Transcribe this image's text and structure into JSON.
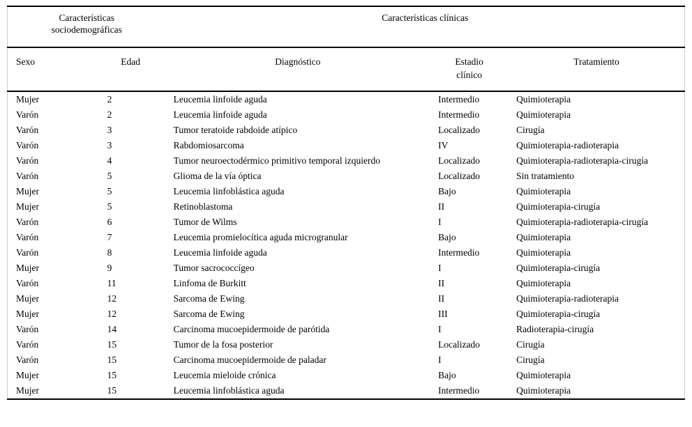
{
  "colors": {
    "background": "#ffffff",
    "text": "#000000",
    "rule": "#000000",
    "side_border": "#cccccc"
  },
  "table": {
    "group_headers": [
      {
        "label": "Características sociodemográficas",
        "colspan": 2
      },
      {
        "label": "Características clínicas",
        "colspan": 3
      }
    ],
    "columns": [
      "Sexo",
      "Edad",
      "Diagnóstico",
      "Estadio clínico",
      "Tratamiento"
    ],
    "rows": [
      {
        "sexo": "Mujer",
        "edad": "2",
        "diagnostico": "Leucemia linfoide aguda",
        "estadio": "Intermedio",
        "tratamiento": "Quimioterapia"
      },
      {
        "sexo": "Varón",
        "edad": "2",
        "diagnostico": "Leucemia linfoide aguda",
        "estadio": "Intermedio",
        "tratamiento": "Quimioterapia"
      },
      {
        "sexo": "Varón",
        "edad": "3",
        "diagnostico": "Tumor teratoide rabdoide atípico",
        "estadio": "Localizado",
        "tratamiento": "Cirugía"
      },
      {
        "sexo": "Varón",
        "edad": "3",
        "diagnostico": "Rabdomiosarcoma",
        "estadio": "IV",
        "tratamiento": "Quimioterapia-radioterapia"
      },
      {
        "sexo": "Varón",
        "edad": "4",
        "diagnostico": "Tumor neuroectodérmico primitivo temporal izquierdo",
        "estadio": "Localizado",
        "tratamiento": "Quimioterapia-radioterapia-cirugía"
      },
      {
        "sexo": "Varón",
        "edad": "5",
        "diagnostico": "Glioma de la vía óptica",
        "estadio": "Localizado",
        "tratamiento": "Sin tratamiento"
      },
      {
        "sexo": "Mujer",
        "edad": "5",
        "diagnostico": "Leucemia linfoblástica aguda",
        "estadio": "Bajo",
        "tratamiento": "Quimioterapia"
      },
      {
        "sexo": "Mujer",
        "edad": "5",
        "diagnostico": "Retinoblastoma",
        "estadio": "II",
        "tratamiento": "Quimioterapia-cirugía"
      },
      {
        "sexo": "Varón",
        "edad": "6",
        "diagnostico": "Tumor de Wilms",
        "estadio": "I",
        "tratamiento": "Quimioterapia-radioterapia-cirugía"
      },
      {
        "sexo": "Varón",
        "edad": "7",
        "diagnostico": "Leucemia promielocítica aguda microgranular",
        "estadio": "Bajo",
        "tratamiento": "Quimioterapia"
      },
      {
        "sexo": "Varón",
        "edad": "8",
        "diagnostico": "Leucemia linfoide aguda",
        "estadio": "Intermedio",
        "tratamiento": "Quimioterapia"
      },
      {
        "sexo": "Mujer",
        "edad": "9",
        "diagnostico": "Tumor sacrococcígeo",
        "estadio": "I",
        "tratamiento": "Quimioterapia-cirugía"
      },
      {
        "sexo": "Varón",
        "edad": "11",
        "diagnostico": "Linfoma de Burkitt",
        "estadio": "II",
        "tratamiento": "Quimioterapia"
      },
      {
        "sexo": "Mujer",
        "edad": "12",
        "diagnostico": "Sarcoma de Ewing",
        "estadio": "II",
        "tratamiento": "Quimioterapia-radioterapia"
      },
      {
        "sexo": "Mujer",
        "edad": "12",
        "diagnostico": "Sarcoma de Ewing",
        "estadio": "III",
        "tratamiento": "Quimioterapia-cirugía"
      },
      {
        "sexo": "Varón",
        "edad": "14",
        "diagnostico": "Carcinoma mucoepidermoide de parótida",
        "estadio": "I",
        "tratamiento": "Radioterapia-cirugía"
      },
      {
        "sexo": "Varón",
        "edad": "15",
        "diagnostico": "Tumor de la fosa posterior",
        "estadio": "Localizado",
        "tratamiento": "Cirugía"
      },
      {
        "sexo": "Varón",
        "edad": "15",
        "diagnostico": "Carcinoma mucoepidermoide de paladar",
        "estadio": "I",
        "tratamiento": "Cirugía"
      },
      {
        "sexo": "Mujer",
        "edad": "15",
        "diagnostico": "Leucemia mieloide crónica",
        "estadio": "Bajo",
        "tratamiento": "Quimioterapia"
      },
      {
        "sexo": "Mujer",
        "edad": "15",
        "diagnostico": "Leucemia linfoblástica aguda",
        "estadio": "Intermedio",
        "tratamiento": "Quimioterapia"
      }
    ]
  }
}
